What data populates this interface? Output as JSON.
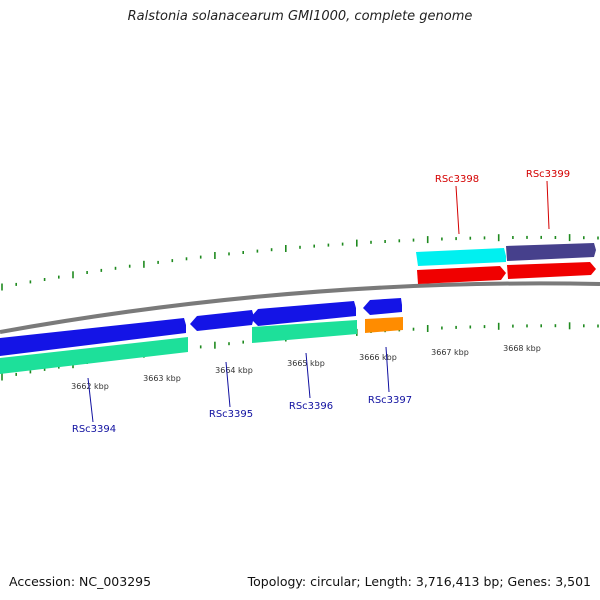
{
  "title": "Ralstonia solanacearum GMI1000, complete genome",
  "footer": {
    "accession": "Accession: NC_003295",
    "summary": "Topology: circular; Length: 3,716,413 bp; Genes: 3,501"
  },
  "colors": {
    "backbone": "#7a7a7a",
    "tick": "#1f8a1f",
    "forward_label": "#d40000",
    "reverse_label": "#1010a0",
    "gene_blue": "#1414e6",
    "gene_cyan": "#00f0f0",
    "gene_navy": "#46408c",
    "gene_red": "#f00000",
    "gene_green": "#1de09a",
    "gene_orange": "#ff8c00"
  },
  "kbp_labels": [
    "3662 kbp",
    "3663 kbp",
    "3664 kbp",
    "3665 kbp",
    "3666 kbp",
    "3667 kbp",
    "3668 kbp"
  ],
  "gene_labels": {
    "forward": [
      "RSc3398",
      "RSc3399"
    ],
    "reverse": [
      "RSc3394",
      "RSc3395",
      "RSc3396",
      "RSc3397"
    ]
  }
}
